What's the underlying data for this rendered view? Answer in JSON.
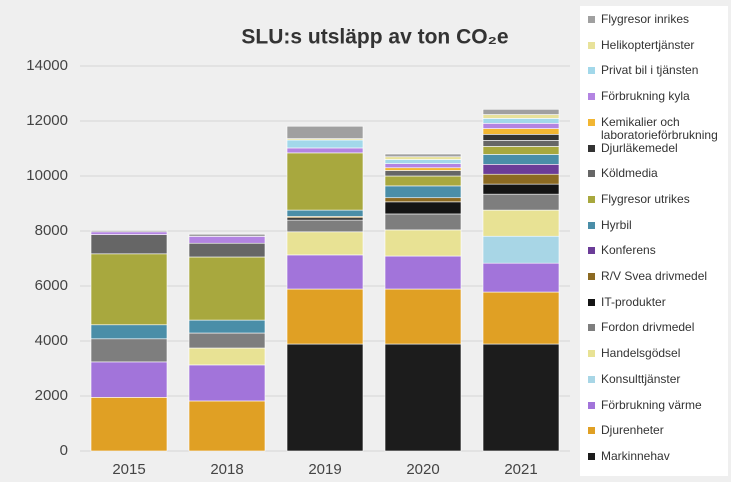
{
  "chart_data": {
    "type": "stacked_bar",
    "title": "SLU:s utsläpp av ton CO₂e",
    "categories": [
      "2015",
      "2018",
      "2019",
      "2020",
      "2021"
    ],
    "ylim": [
      0,
      14000
    ],
    "yticks": [
      0,
      2000,
      4000,
      6000,
      8000,
      10000,
      12000,
      14000
    ],
    "grid": true,
    "legend": "right",
    "series": [
      {
        "name": "Markinnehav",
        "color": "#1c1c1c",
        "values": [
          0,
          0,
          3890,
          3890,
          3890
        ]
      },
      {
        "name": "Djurenheter",
        "color": "#e0a024",
        "values": [
          1950,
          1820,
          2000,
          2000,
          1890
        ]
      },
      {
        "name": "Förbrukning värme",
        "color": "#a274da",
        "values": [
          1290,
          1310,
          1240,
          1200,
          1050
        ]
      },
      {
        "name": "Konsulttjänster",
        "color": "#a8d6e6",
        "values": [
          0,
          0,
          0,
          0,
          980
        ]
      },
      {
        "name": "Handelsgödsel",
        "color": "#e8e294",
        "values": [
          0,
          615,
          840,
          950,
          950
        ]
      },
      {
        "name": "Fordon drivmedel",
        "color": "#7e7e7e",
        "values": [
          840,
          545,
          430,
          580,
          580
        ]
      },
      {
        "name": "IT-produkter",
        "color": "#141414",
        "values": [
          0,
          0,
          80,
          440,
          365
        ]
      },
      {
        "name": "R/V Svea drivmedel",
        "color": "#8c6a22",
        "values": [
          0,
          0,
          50,
          150,
          360
        ]
      },
      {
        "name": "Konferens",
        "color": "#6b3c98",
        "values": [
          0,
          0,
          0,
          0,
          360
        ]
      },
      {
        "name": "Hyrbil",
        "color": "#4a8ea8",
        "values": [
          510,
          470,
          230,
          430,
          360
        ]
      },
      {
        "name": "Flygresor utrikes",
        "color": "#a8a83e",
        "values": [
          2580,
          2295,
          2080,
          360,
          290
        ]
      },
      {
        "name": "Köldmedia",
        "color": "#666666",
        "values": [
          700,
          500,
          0,
          200,
          220
        ]
      },
      {
        "name": "Djurläkemedel",
        "color": "#333333",
        "values": [
          0,
          0,
          0,
          0,
          220
        ]
      },
      {
        "name": "Kemikalier och laboratorieförbrukning",
        "color": "#f2b632",
        "values": [
          0,
          0,
          0,
          100,
          210
        ]
      },
      {
        "name": "Förbrukning kyla",
        "color": "#b384e2",
        "values": [
          100,
          250,
          180,
          150,
          190
        ]
      },
      {
        "name": "Privat bil i tjänsten",
        "color": "#a2d8ea",
        "values": [
          0,
          0,
          290,
          150,
          180
        ]
      },
      {
        "name": "Helikoptertjänster",
        "color": "#e8e29a",
        "values": [
          0,
          0,
          50,
          100,
          140
        ]
      },
      {
        "name": "Flygresor inrikes",
        "color": "#a0a0a0",
        "values": [
          50,
          80,
          450,
          100,
          190
        ]
      }
    ]
  }
}
